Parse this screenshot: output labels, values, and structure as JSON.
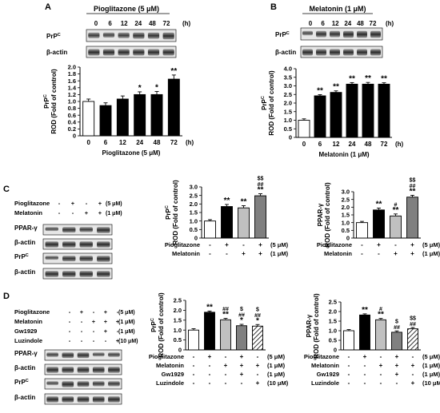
{
  "panel_labels": [
    "A",
    "B",
    "C",
    "D"
  ],
  "blot_labels": {
    "prpc": "PrP",
    "prpc_sup": "C",
    "actin": "β-actin",
    "ppar": "PPAR-γ"
  },
  "unit_h": "(h)",
  "panel_a": {
    "treatment_header": "Pioglitazone (5 μM)",
    "time_labels": [
      "0",
      "6",
      "12",
      "24",
      "48",
      "72"
    ],
    "chart": {
      "type": "bar",
      "categories": [
        "0",
        "6",
        "12",
        "24",
        "48",
        "72"
      ],
      "values": [
        1.0,
        0.88,
        1.07,
        1.2,
        1.2,
        1.65
      ],
      "errors": [
        0.07,
        0.08,
        0.09,
        0.08,
        0.09,
        0.12
      ],
      "significance": [
        "",
        "",
        "",
        "*",
        "*",
        "**"
      ],
      "fills": [
        "#ffffff",
        "#000000",
        "#000000",
        "#000000",
        "#000000",
        "#000000"
      ],
      "ylim": [
        0,
        2.0
      ],
      "yticks": [
        "0",
        "0.2",
        "0.4",
        "0.6",
        "0.8",
        "1.0",
        "1.2",
        "1.4",
        "1.6",
        "1.8",
        "2.0"
      ],
      "ylabel_top": "PrP",
      "ylabel_top_sup": "C",
      "ylabel": "ROD (Fold of control)",
      "xlabel": "Pioglitazone (5 μM)"
    }
  },
  "panel_b": {
    "treatment_header": "Melatonin (1 μM)",
    "time_labels": [
      "0",
      "6",
      "12",
      "24",
      "48",
      "72"
    ],
    "chart": {
      "type": "bar",
      "categories": [
        "0",
        "6",
        "12",
        "24",
        "48",
        "72"
      ],
      "values": [
        1.0,
        2.42,
        2.62,
        3.1,
        3.1,
        3.1
      ],
      "errors": [
        0.08,
        0.07,
        0.09,
        0.09,
        0.1,
        0.08
      ],
      "significance": [
        "",
        "**",
        "**",
        "**",
        "**",
        "**"
      ],
      "fills": [
        "#ffffff",
        "#000000",
        "#000000",
        "#000000",
        "#000000",
        "#000000"
      ],
      "ylim": [
        0,
        4.0
      ],
      "yticks": [
        "0",
        "0.5",
        "1.0",
        "1.5",
        "2.0",
        "2.5",
        "3.0",
        "3.5",
        "4.0"
      ],
      "ylabel_top": "PrP",
      "ylabel_top_sup": "C",
      "ylabel": "ROD (Fold of control)",
      "xlabel": "Melatonin (1 μM)"
    }
  },
  "panel_c": {
    "blot_rows": [
      {
        "name": "Pioglitazone",
        "signs": [
          "-",
          "+",
          "-",
          "+"
        ],
        "dose": "(5 μM)"
      },
      {
        "name": "Melatonin",
        "signs": [
          "-",
          "-",
          "+",
          "+"
        ],
        "dose": "(1 μM)"
      }
    ],
    "chart_prpc": {
      "type": "bar",
      "values": [
        1.0,
        1.85,
        1.77,
        2.48
      ],
      "errors": [
        0.08,
        0.12,
        0.13,
        0.12
      ],
      "significance": [
        [],
        [
          "**"
        ],
        [
          "**"
        ],
        [
          "**",
          "##",
          "$$"
        ]
      ],
      "fills": [
        "#ffffff",
        "#000000",
        "#c0c0c0",
        "#808080"
      ],
      "ylim": [
        0,
        3.0
      ],
      "yticks": [
        "0",
        "0.5",
        "1.0",
        "1.5",
        "2.0",
        "2.5",
        "3.0"
      ],
      "ylabel_top": "PrP",
      "ylabel_top_sup": "C",
      "ylabel": "ROD (Fold of control)",
      "rows": [
        {
          "name": "Pioglitazone",
          "signs": [
            "-",
            "+",
            "-",
            "+"
          ],
          "dose": "(5 μM)"
        },
        {
          "name": "Melatonin",
          "signs": [
            "-",
            "-",
            "+",
            "+"
          ],
          "dose": "(1 μM)"
        }
      ]
    },
    "chart_ppar": {
      "type": "bar",
      "values": [
        1.0,
        1.82,
        1.43,
        2.65
      ],
      "errors": [
        0.08,
        0.12,
        0.13,
        0.12
      ],
      "significance": [
        [],
        [
          "**"
        ],
        [
          "**",
          "#"
        ],
        [
          "**",
          "##",
          "$$"
        ]
      ],
      "fills": [
        "#ffffff",
        "#000000",
        "#c0c0c0",
        "#808080"
      ],
      "ylim": [
        0,
        3.0
      ],
      "yticks": [
        "0",
        "0.5",
        "1.0",
        "1.5",
        "2.0",
        "2.5",
        "3.0"
      ],
      "ylabel_top": "PPAR-γ",
      "ylabel": "ROD (Fold of control)",
      "rows": [
        {
          "name": "Pioglitazone",
          "signs": [
            "-",
            "+",
            "-",
            "+"
          ],
          "dose": "(5 μM)"
        },
        {
          "name": "Melatonin",
          "signs": [
            "-",
            "-",
            "+",
            "+"
          ],
          "dose": "(1 μM)"
        }
      ]
    }
  },
  "panel_d": {
    "blot_rows": [
      {
        "name": "Pioglitazone",
        "signs": [
          "-",
          "+",
          "-",
          "+",
          "-"
        ],
        "dose": "(5 μM)"
      },
      {
        "name": "Melatonin",
        "signs": [
          "-",
          "-",
          "+",
          "+",
          "+"
        ],
        "dose": "(1 μM)"
      },
      {
        "name": "Gw1929",
        "signs": [
          "-",
          "-",
          "-",
          "+",
          "-"
        ],
        "dose": "(1 μM)"
      },
      {
        "name": "Luzindole",
        "signs": [
          "-",
          "-",
          "-",
          "-",
          "+"
        ],
        "dose": "(10 μM)"
      }
    ],
    "chart_prpc": {
      "type": "bar",
      "values": [
        1.0,
        1.9,
        1.52,
        1.22,
        1.2
      ],
      "errors": [
        0.07,
        0.06,
        0.07,
        0.07,
        0.08
      ],
      "significance": [
        [],
        [
          "**"
        ],
        [
          "**",
          "##"
        ],
        [
          "*",
          "##",
          "$"
        ],
        [
          "*",
          "##",
          "$"
        ]
      ],
      "fills": [
        "#ffffff",
        "#000000",
        "#c0c0c0",
        "#808080",
        "hatch"
      ],
      "ylim": [
        0,
        2.5
      ],
      "yticks": [
        "0",
        "0.5",
        "1.0",
        "1.5",
        "2.0",
        "2.5"
      ],
      "ylabel_top": "PrP",
      "ylabel_top_sup": "C",
      "ylabel": "ROD (Fold of control)",
      "rows": [
        {
          "name": "Pioglitazone",
          "signs": [
            "-",
            "+",
            "-",
            "+",
            "-"
          ],
          "dose": "(5 μM)"
        },
        {
          "name": "Melatonin",
          "signs": [
            "-",
            "-",
            "+",
            "+",
            "+"
          ],
          "dose": "(1 μM)"
        },
        {
          "name": "Gw1929",
          "signs": [
            "-",
            "-",
            "-",
            "+",
            "-"
          ],
          "dose": "(1 μM)"
        },
        {
          "name": "Luzindole",
          "signs": [
            "-",
            "-",
            "-",
            "-",
            "+"
          ],
          "dose": "(10 μM)"
        }
      ]
    },
    "chart_ppar": {
      "type": "bar",
      "values": [
        1.0,
        1.82,
        1.57,
        0.92,
        1.1
      ],
      "errors": [
        0.06,
        0.06,
        0.07,
        0.07,
        0.07
      ],
      "significance": [
        [],
        [
          "**"
        ],
        [
          "**",
          "#"
        ],
        [
          "##",
          "$"
        ],
        [
          "##",
          "$$"
        ]
      ],
      "fills": [
        "#ffffff",
        "#000000",
        "#c0c0c0",
        "#808080",
        "hatch"
      ],
      "ylim": [
        0,
        2.5
      ],
      "yticks": [
        "0",
        "0.5",
        "1.0",
        "1.5",
        "2.0",
        "2.5"
      ],
      "ylabel_top": "PPAR-γ",
      "ylabel": "ROD (Fold of control)",
      "rows": [
        {
          "name": "Pioglitazone",
          "signs": [
            "-",
            "+",
            "-",
            "+",
            "-"
          ],
          "dose": "(5 μM)"
        },
        {
          "name": "Melatonin",
          "signs": [
            "-",
            "-",
            "+",
            "+",
            "+"
          ],
          "dose": "(1 μM)"
        },
        {
          "name": "Gw1929",
          "signs": [
            "-",
            "-",
            "-",
            "+",
            "-"
          ],
          "dose": "(1 μM)"
        },
        {
          "name": "Luzindole",
          "signs": [
            "-",
            "-",
            "-",
            "-",
            "+"
          ],
          "dose": "(10 μM)"
        }
      ]
    }
  }
}
